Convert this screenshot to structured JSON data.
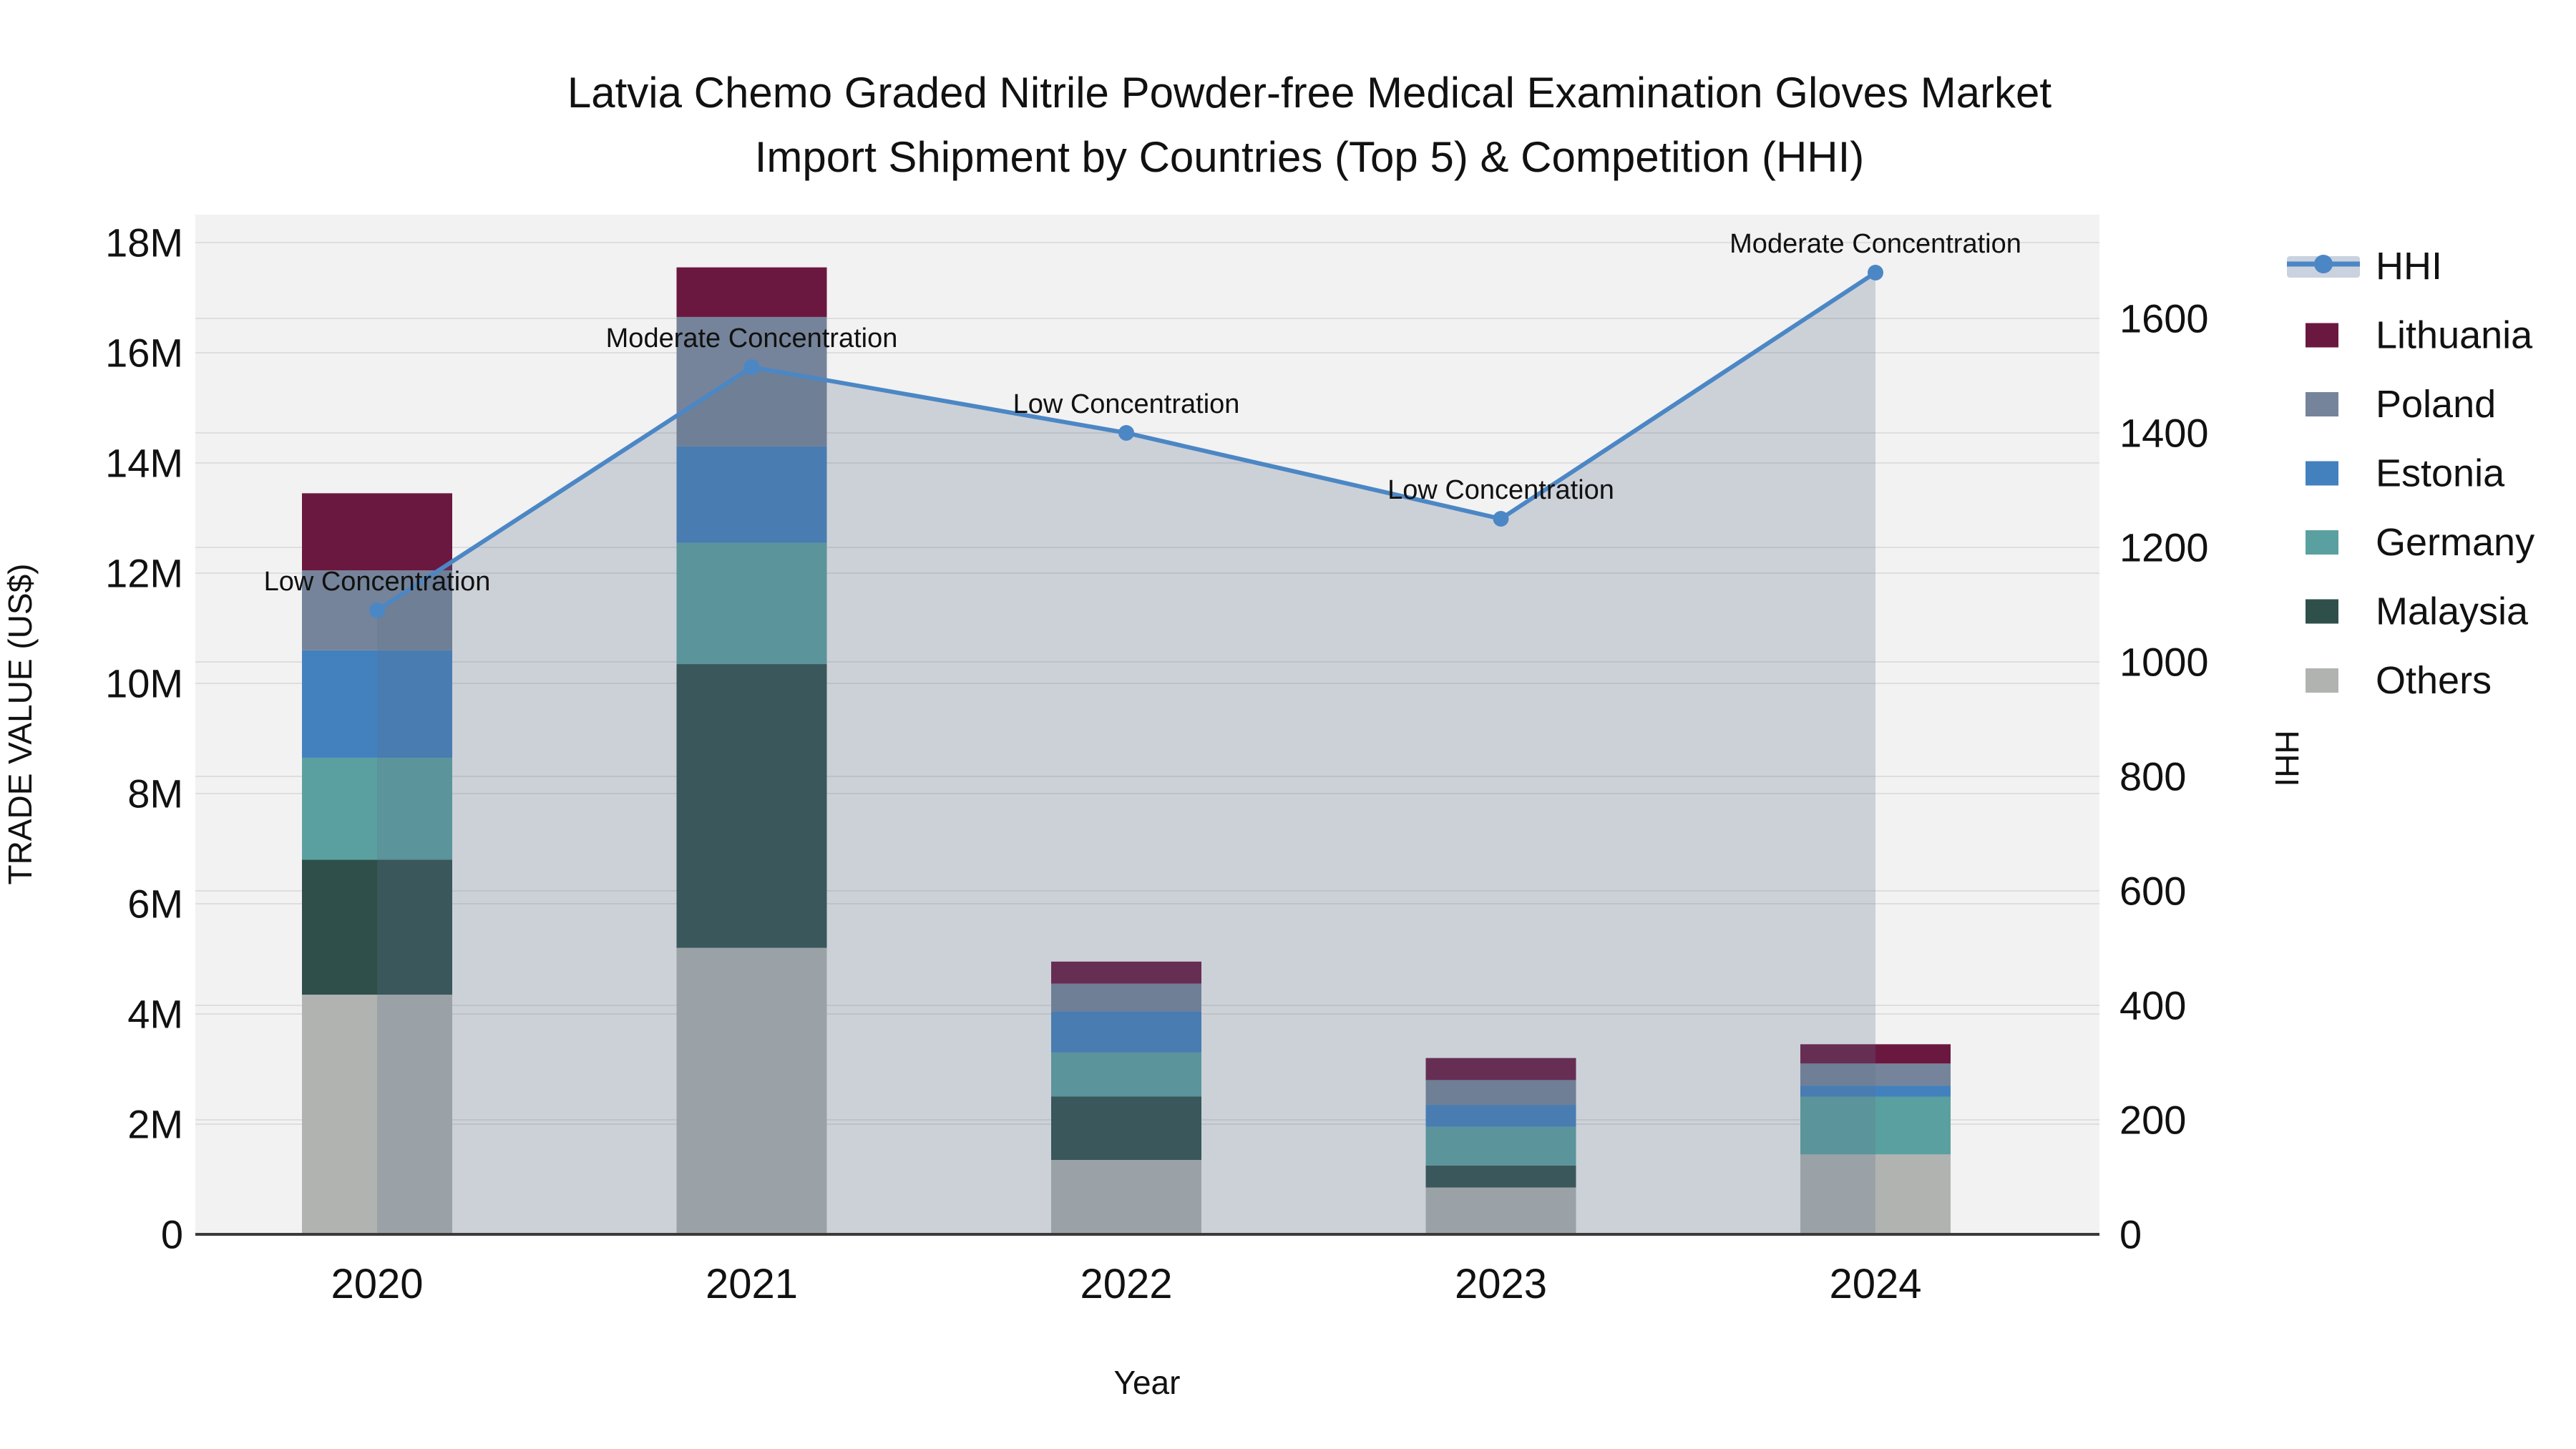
{
  "chart_data": {
    "type": "bar",
    "subtype": "stacked-bar-with-line-area",
    "title_line1": "Latvia Chemo Graded Nitrile Powder-free Medical Examination Gloves Market",
    "title_line2": "Import Shipment by Countries (Top 5) & Competition (HHI)",
    "xlabel": "Year",
    "ylabel_left": "TRADE VALUE (US$)",
    "ylabel_right": "HHI",
    "categories": [
      "2020",
      "2021",
      "2022",
      "2023",
      "2024"
    ],
    "y_left_axis": {
      "tick_labels": [
        "0",
        "2M",
        "4M",
        "6M",
        "8M",
        "10M",
        "12M",
        "14M",
        "16M",
        "18M"
      ],
      "tick_values": [
        0,
        2,
        4,
        6,
        8,
        10,
        12,
        14,
        16,
        18
      ],
      "range": [
        0,
        18.5
      ],
      "unit": "million US$"
    },
    "y_right_axis": {
      "tick_labels": [
        "0",
        "200",
        "400",
        "600",
        "800",
        "1000",
        "1200",
        "1400",
        "1600"
      ],
      "tick_values": [
        0,
        200,
        400,
        600,
        800,
        1000,
        1200,
        1400,
        1600
      ],
      "range": [
        0,
        1780
      ]
    },
    "stack_order_bottom_to_top": [
      "Others",
      "Malaysia",
      "Germany",
      "Estonia",
      "Poland",
      "Lithuania"
    ],
    "series": [
      {
        "name": "Others",
        "color": "#B1B3B1",
        "values": [
          4.35,
          5.2,
          1.35,
          0.85,
          1.45
        ]
      },
      {
        "name": "Malaysia",
        "color": "#2F4F4B",
        "values": [
          2.45,
          5.15,
          1.15,
          0.4,
          0.0
        ]
      },
      {
        "name": "Germany",
        "color": "#5BA0A0",
        "values": [
          1.85,
          2.2,
          0.8,
          0.7,
          1.05
        ]
      },
      {
        "name": "Estonia",
        "color": "#4381BE",
        "values": [
          1.95,
          1.75,
          0.75,
          0.4,
          0.2
        ]
      },
      {
        "name": "Poland",
        "color": "#75849A",
        "values": [
          1.45,
          2.35,
          0.5,
          0.45,
          0.4
        ]
      },
      {
        "name": "Lithuania",
        "color": "#6B1840",
        "values": [
          1.4,
          0.9,
          0.4,
          0.4,
          0.35
        ]
      }
    ],
    "bar_totals": [
      13.45,
      17.55,
      4.95,
      3.2,
      3.45
    ],
    "line_series": {
      "name": "HHI",
      "color": "#4C87C5",
      "fill_color": "rgba(90,110,140,0.25)",
      "values": [
        1090,
        1515,
        1400,
        1250,
        1680
      ],
      "annotations": [
        "Low Concentration",
        "Moderate Concentration",
        "Low Concentration",
        "Low Concentration",
        "Moderate Concentration"
      ]
    },
    "legend": [
      {
        "label": "HHI",
        "type": "line",
        "color": "#4C87C5",
        "band_color": "#C9D2DE"
      },
      {
        "label": "Lithuania",
        "type": "box",
        "color": "#6B1840"
      },
      {
        "label": "Poland",
        "type": "box",
        "color": "#75849A"
      },
      {
        "label": "Estonia",
        "type": "box",
        "color": "#4381BE"
      },
      {
        "label": "Germany",
        "type": "box",
        "color": "#5BA0A0"
      },
      {
        "label": "Malaysia",
        "type": "box",
        "color": "#2F4F4B"
      },
      {
        "label": "Others",
        "type": "box",
        "color": "#B1B3B1"
      }
    ],
    "style": {
      "plot_bg": "#F2F2F2",
      "grid_color": "#DEDEDE",
      "axis_line_color": "#3A3A3A",
      "text_color": "#111111"
    },
    "legend_position": "right",
    "grid": "on"
  }
}
